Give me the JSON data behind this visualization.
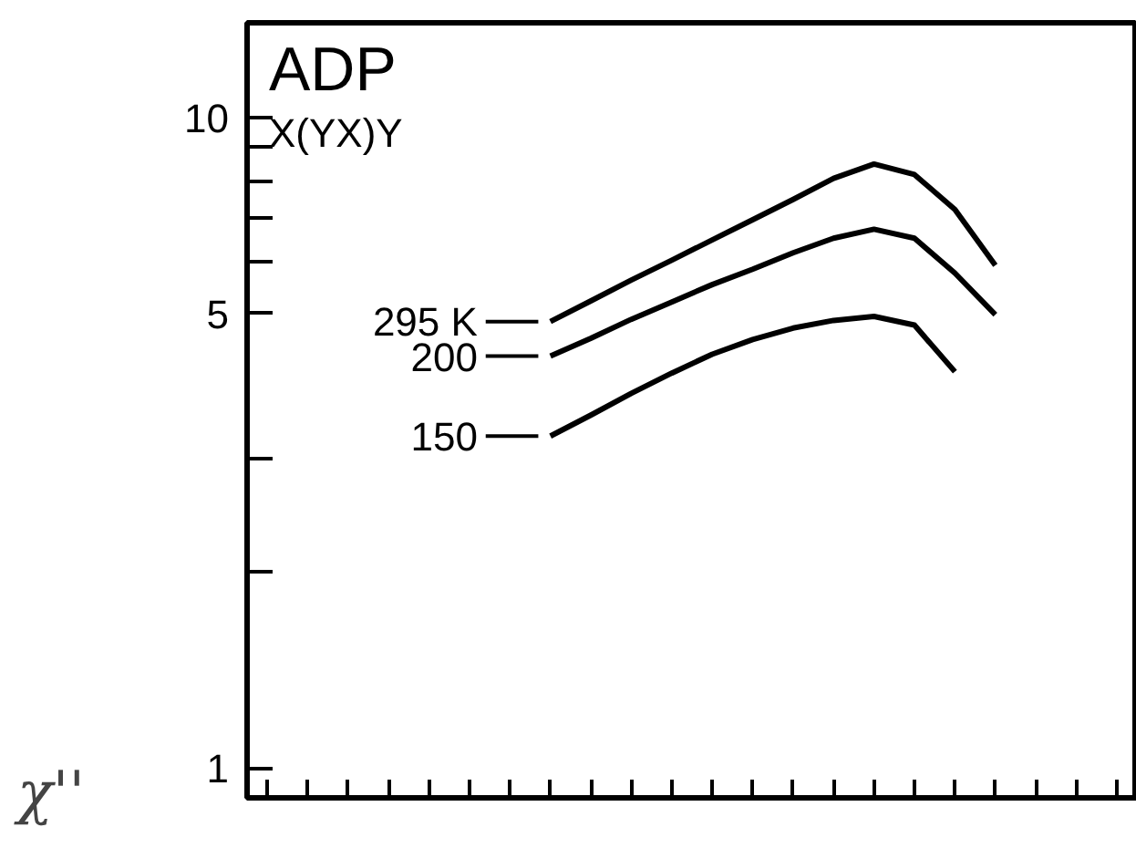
{
  "chart_data": {
    "type": "line",
    "title": "ADP",
    "subtitle": "X(YX)Y",
    "ylabel": "χ''",
    "categories": [
      null,
      null,
      null,
      null,
      null,
      null,
      null,
      null,
      null,
      null,
      null,
      null,
      null,
      null,
      null,
      null,
      null,
      null,
      null,
      null,
      null,
      null
    ],
    "series": [
      {
        "name": "295 K",
        "color": "#000000",
        "values": [
          null,
          null,
          null,
          null,
          null,
          null,
          null,
          4.86,
          5.23,
          5.63,
          6.04,
          6.49,
          6.97,
          7.49,
          8.07,
          8.49,
          8.18,
          7.23,
          5.93,
          null,
          null,
          null
        ]
      },
      {
        "name": "200",
        "color": "#000000",
        "values": [
          null,
          null,
          null,
          null,
          null,
          null,
          null,
          4.3,
          4.58,
          4.9,
          5.21,
          5.54,
          5.85,
          6.2,
          6.53,
          6.74,
          6.53,
          5.77,
          4.98,
          null,
          null,
          null
        ]
      },
      {
        "name": "150",
        "color": "#000000",
        "values": [
          null,
          null,
          null,
          null,
          null,
          null,
          null,
          3.24,
          3.49,
          3.77,
          4.05,
          4.33,
          4.56,
          4.75,
          4.88,
          4.95,
          4.8,
          4.07,
          null,
          null,
          null,
          null
        ]
      }
    ],
    "log": true,
    "ylim": [
      0.9,
      14
    ],
    "yticks": [
      1,
      {
        "value": 2,
        "label": null
      },
      {
        "value": 3,
        "label": null
      },
      5,
      {
        "value": 6,
        "label": null
      },
      {
        "value": 7,
        "label": null
      },
      {
        "value": 8,
        "label": null
      },
      {
        "value": 9,
        "label": null
      },
      10
    ],
    "tick_labels": "y",
    "grid": false,
    "legend": "left",
    "line_style": "solid",
    "marker": "none"
  }
}
